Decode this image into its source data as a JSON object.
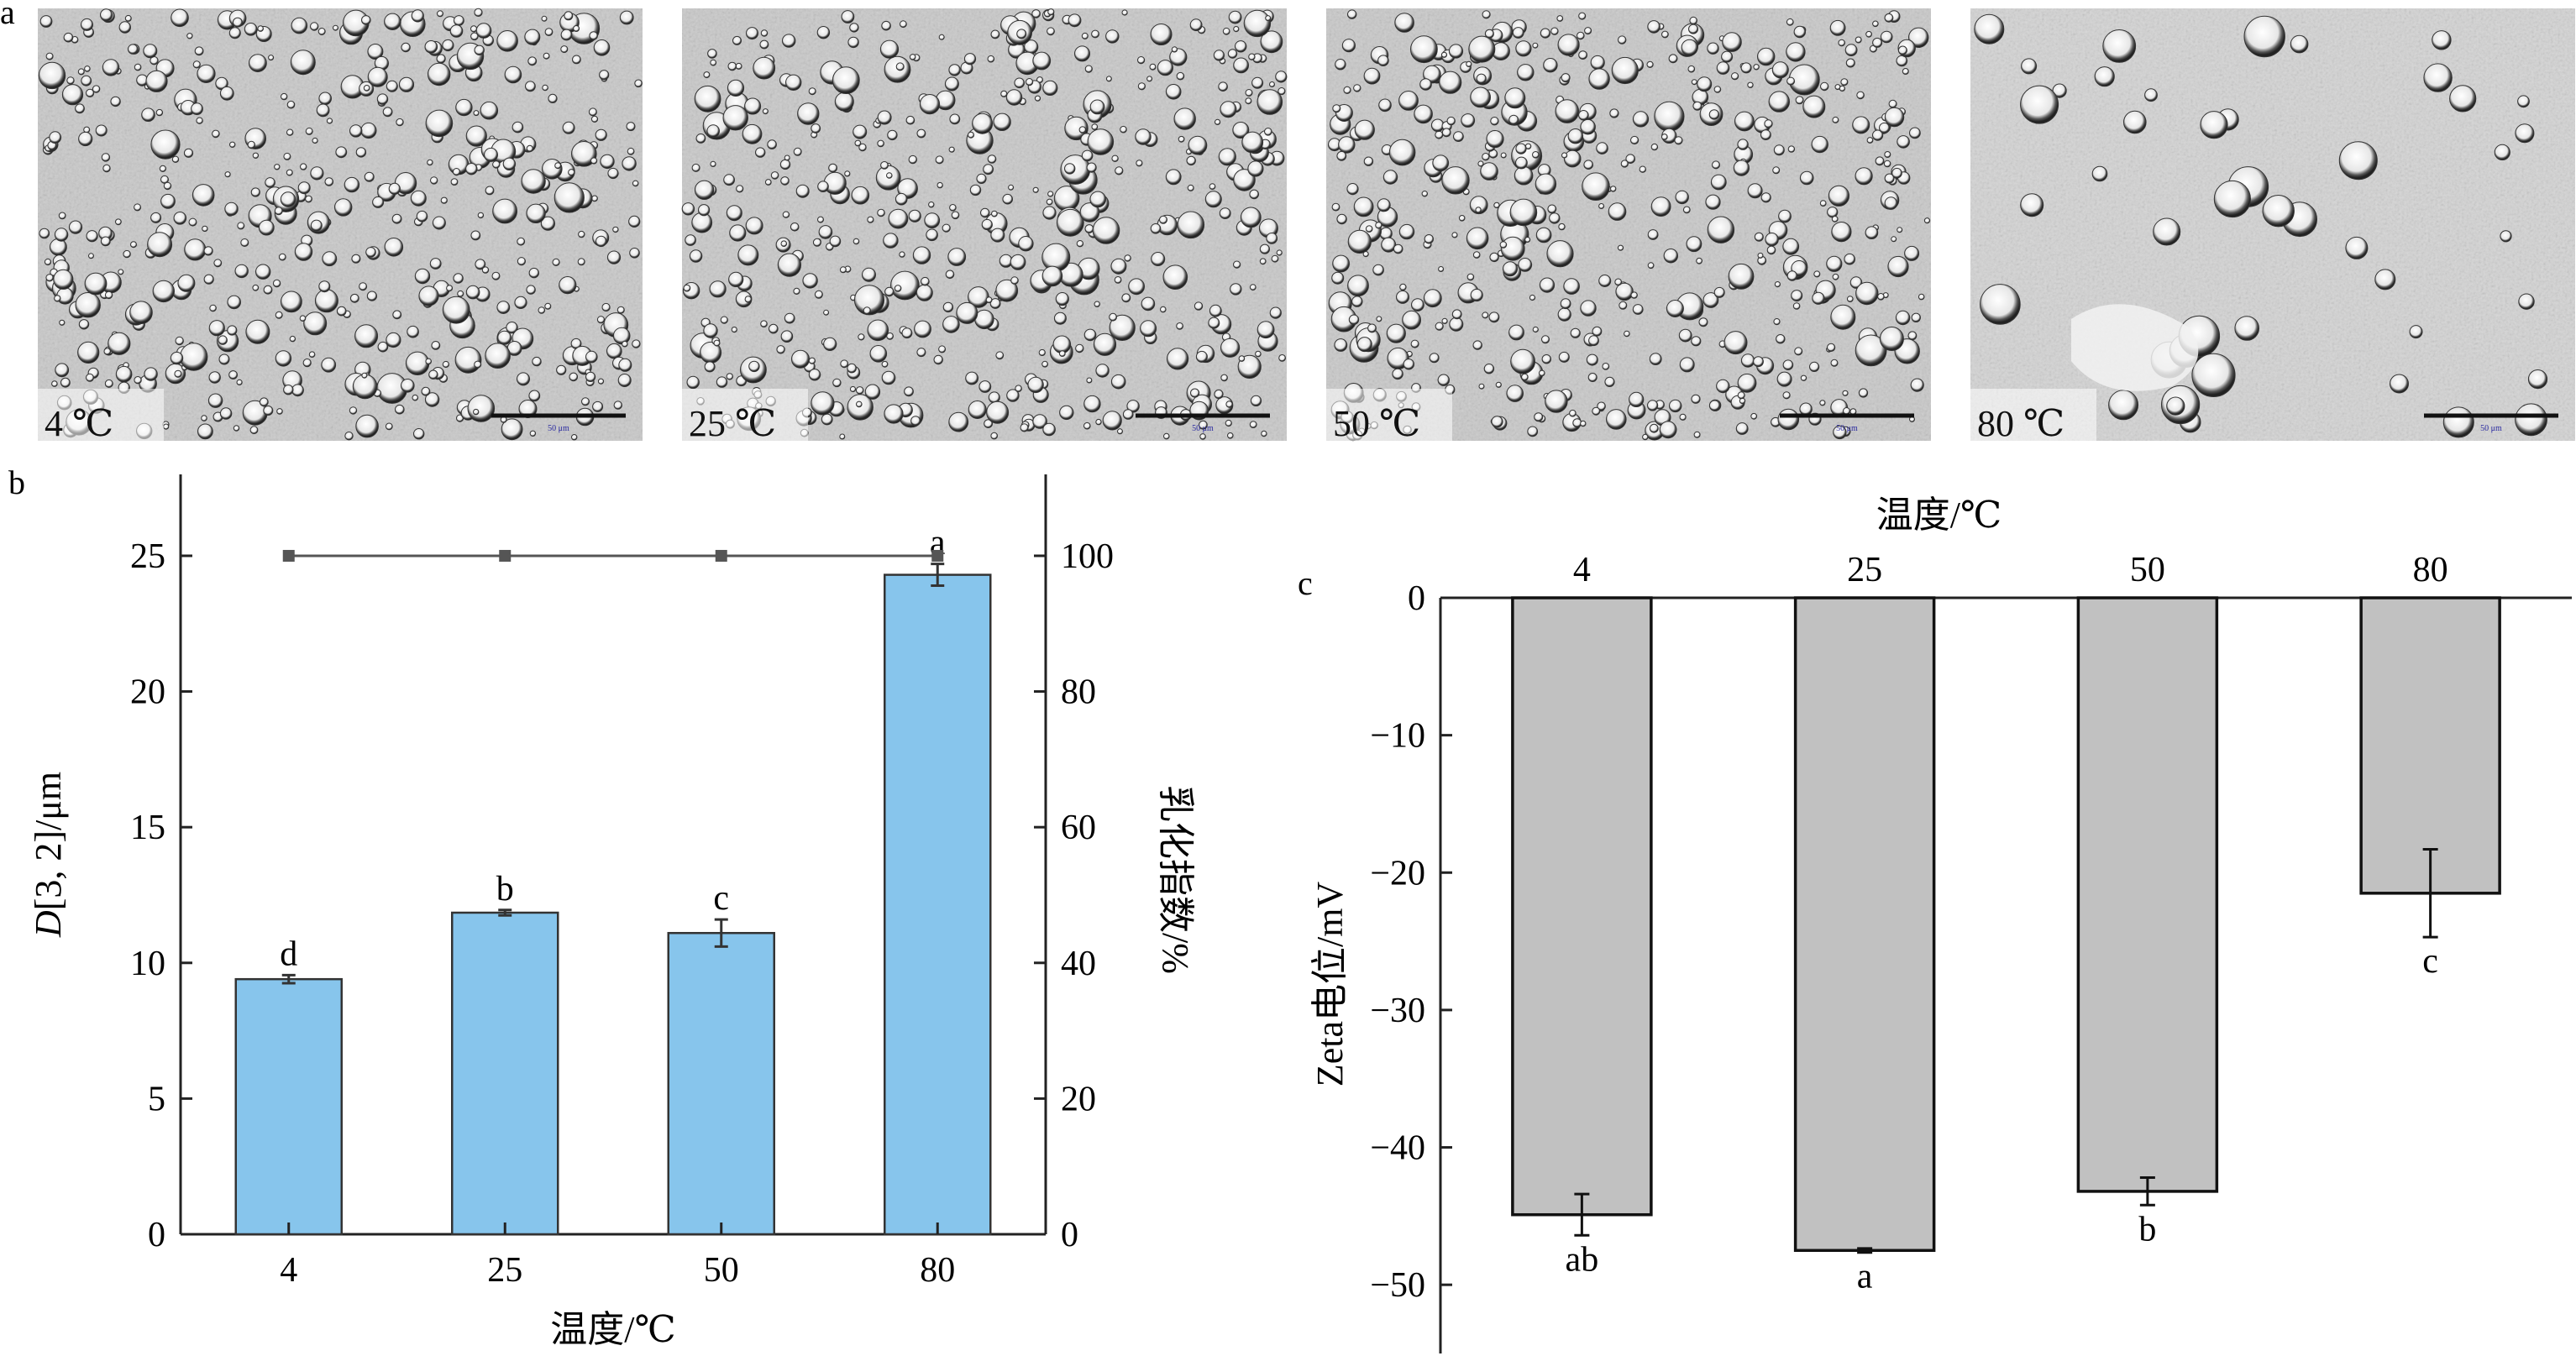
{
  "panel_a": {
    "label": "a",
    "micrographs": [
      {
        "temp_label": "4 ℃",
        "scale_text": "50 μm",
        "droplets": "small-dense"
      },
      {
        "temp_label": "25 ℃",
        "scale_text": "50 μm",
        "droplets": "small-dense"
      },
      {
        "temp_label": "50 ℃",
        "scale_text": "50 μm",
        "droplets": "small-dense"
      },
      {
        "temp_label": "80 ℃",
        "scale_text": "50 μm",
        "droplets": "large-sparse"
      }
    ]
  },
  "colors": {
    "bar_blue": "#87c5ec",
    "bar_gray": "#c1c1c1",
    "line": "#555555",
    "axis": "#222222"
  },
  "chart_data": [
    {
      "panel": "b",
      "type": "bar",
      "categories": [
        "4",
        "25",
        "50",
        "80"
      ],
      "xlabel": "温度/℃",
      "ylabel_italic": "D",
      "ylabel_rest": "[3, 2]/μm",
      "ylim": [
        0,
        28
      ],
      "yticks": [
        0,
        5,
        10,
        15,
        20,
        25
      ],
      "values": [
        9.4,
        11.85,
        11.1,
        24.3
      ],
      "errors": [
        0.15,
        0.1,
        0.5,
        0.4
      ],
      "significance": [
        "d",
        "b",
        "c",
        "a"
      ],
      "secondary_axis": {
        "label": "乳化指数/%",
        "ylim": [
          0,
          112
        ],
        "yticks": [
          0,
          20,
          40,
          60,
          80,
          100
        ],
        "type": "line",
        "values": [
          100,
          100,
          100,
          100
        ]
      }
    },
    {
      "panel": "c",
      "type": "bar",
      "categories": [
        "4",
        "25",
        "50",
        "80"
      ],
      "xlabel": "温度/℃",
      "xaxis_position": "top",
      "ylabel": "Zeta电位/mV",
      "ylim": [
        -55,
        0
      ],
      "yticks": [
        0,
        -10,
        -20,
        -30,
        -40,
        -50
      ],
      "ytick_labels": [
        "0",
        "−10",
        "−20",
        "−30",
        "−40",
        "−50"
      ],
      "values": [
        -44.9,
        -47.5,
        -43.2,
        -21.5
      ],
      "errors": [
        1.5,
        0.15,
        1.0,
        3.2
      ],
      "significance": [
        "ab",
        "a",
        "b",
        "c"
      ]
    }
  ]
}
